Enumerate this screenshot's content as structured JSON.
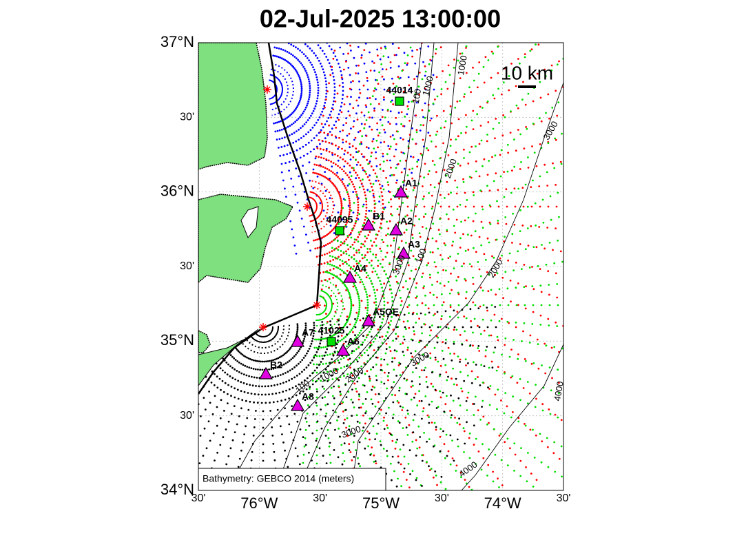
{
  "title": "02-Jul-2025 13:00:00",
  "scale_bar": "10 km",
  "attribution": "Bathymetry: GEBCO 2014 (meters)",
  "lat_labels": [
    "37°N",
    "30'",
    "36°N",
    "30'",
    "35°N",
    "30'",
    "34°N"
  ],
  "lon_labels": [
    "30'",
    "76°W",
    "30'",
    "75°W",
    "30'",
    "74°W",
    "30'"
  ],
  "buoys": [
    "44014",
    "44095",
    "41025"
  ],
  "sites": [
    "A1",
    "B1",
    "A2",
    "A3",
    "A4",
    "A5OE",
    "A7",
    "A6",
    "B2",
    "A8"
  ],
  "contour_labels": [
    "1000",
    "1000",
    "100",
    "2000",
    "3000",
    "2000",
    "100",
    "3000",
    "3000",
    "1000",
    "2000",
    "100",
    "3000",
    "4000",
    "4000"
  ]
}
